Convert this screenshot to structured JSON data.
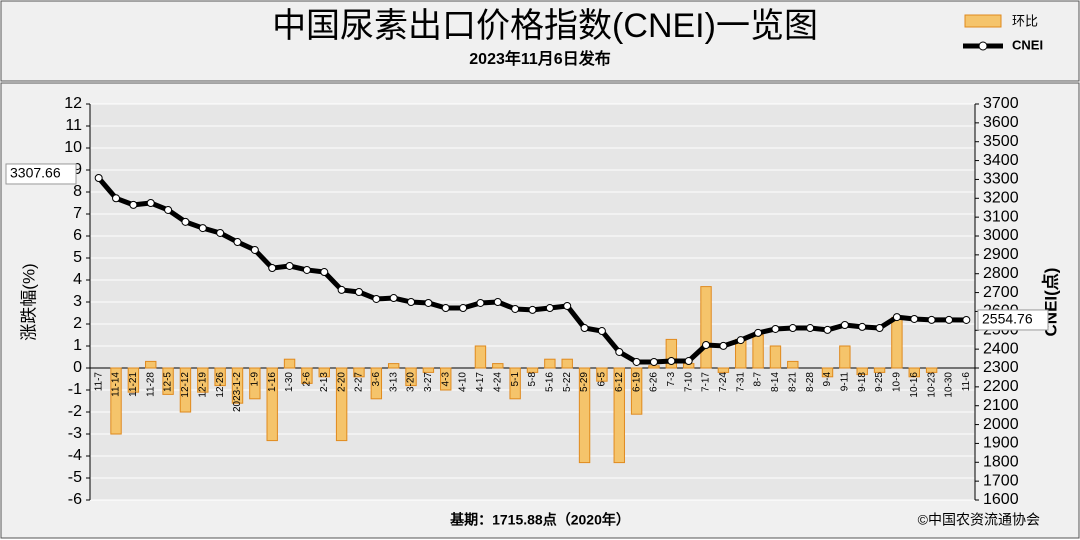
{
  "chart_data": {
    "type": "bar_line",
    "title": "中国尿素出口价格指数(CNEI)一览图",
    "subtitle": "2023年11月6日发布",
    "ylabel": "涨跌幅(%)",
    "y2label": "CNEI(点)",
    "footnote": "基期：1715.88点（2020年）",
    "source": "©中国农资流通协会",
    "categories": [
      "11-7",
      "11-14",
      "11-21",
      "11-28",
      "12-5",
      "12-12",
      "12-19",
      "12-26",
      "2023-1-2",
      "1-9",
      "1-16",
      "1-30",
      "2-6",
      "2-13",
      "2-20",
      "2-27",
      "3-6",
      "3-13",
      "3-20",
      "3-27",
      "4-3",
      "4-10",
      "4-17",
      "4-24",
      "5-1",
      "5-8",
      "5-16",
      "5-22",
      "5-29",
      "6-5",
      "6-12",
      "6-19",
      "6-26",
      "7-3",
      "7-10",
      "7-17",
      "7-24",
      "7-31",
      "8-7",
      "8-14",
      "8-21",
      "8-28",
      "9-4",
      "9-11",
      "9-18",
      "9-25",
      "10-9",
      "10-16",
      "10-23",
      "10-30",
      "11-6"
    ],
    "series": [
      {
        "name": "环比",
        "color": "#f5c46b",
        "values": [
          0,
          -3.0,
          -1.1,
          0.3,
          -1.2,
          -2.0,
          -1.1,
          -0.8,
          -1.6,
          -1.4,
          -3.3,
          0.4,
          -0.7,
          -0.4,
          -3.3,
          -0.4,
          -1.4,
          0.2,
          -0.8,
          -0.2,
          -1.0,
          0,
          1.0,
          0.2,
          -1.4,
          -0.2,
          0.4,
          0.4,
          -4.3,
          -0.6,
          -4.3,
          -2.1,
          0.1,
          1.3,
          0.2,
          3.7,
          -0.2,
          1.3,
          1.5,
          1.0,
          0.3,
          0,
          -0.4,
          1.0,
          -0.3,
          -0.2,
          2.3,
          -0.4,
          -0.2,
          0,
          0
        ]
      },
      {
        "name": "CNEI",
        "color": "#000000",
        "axis": "y2",
        "values": [
          3307.66,
          3200,
          3165,
          3175,
          3138,
          3075,
          3042,
          3016,
          2968,
          2926,
          2830,
          2841,
          2820,
          2809,
          2714,
          2703,
          2666,
          2671,
          2650,
          2645,
          2618,
          2618,
          2645,
          2650,
          2613,
          2608,
          2618,
          2629,
          2512,
          2496,
          2385,
          2332,
          2332,
          2337,
          2337,
          2422,
          2417,
          2448,
          2486,
          2507,
          2512,
          2512,
          2502,
          2528,
          2518,
          2512,
          2570,
          2560,
          2555,
          2555,
          2554.76
        ],
        "value_labels": [
          "3307.66",
          null,
          null,
          null,
          null,
          null,
          null,
          null,
          null,
          null,
          null,
          null,
          null,
          null,
          null,
          null,
          null,
          null,
          null,
          null,
          null,
          null,
          null,
          null,
          null,
          null,
          null,
          null,
          null,
          null,
          null,
          null,
          null,
          null,
          null,
          null,
          null,
          null,
          null,
          null,
          null,
          null,
          null,
          null,
          null,
          null,
          null,
          null,
          null,
          null,
          "2554.76"
        ]
      }
    ],
    "ylim": [
      -6,
      12
    ],
    "yticks": [
      -6,
      -5,
      -4,
      -3,
      -2,
      -1,
      0,
      1,
      2,
      3,
      4,
      5,
      6,
      7,
      8,
      9,
      10,
      11,
      12
    ],
    "y2lim": [
      1600,
      3700
    ],
    "y2ticks": [
      1600,
      1700,
      1800,
      1900,
      2000,
      2100,
      2200,
      2300,
      2400,
      2500,
      2600,
      2700,
      2800,
      2900,
      3000,
      3100,
      3200,
      3300,
      3400,
      3500,
      3600,
      3700
    ],
    "grid": true
  }
}
